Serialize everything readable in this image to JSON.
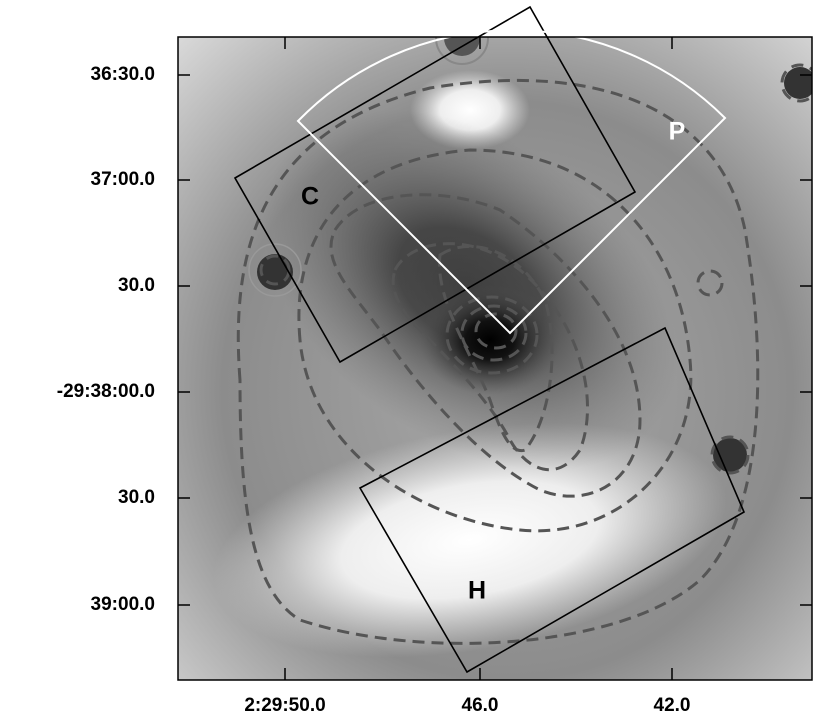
{
  "x_axis": {
    "ticks": [
      "2:29:50.0",
      "46.0",
      "42.0"
    ]
  },
  "y_axis": {
    "ticks": [
      "36:30.0",
      "37:00.0",
      "30.0",
      "-29:38:00.0",
      "30.0",
      "39:00.0"
    ]
  },
  "regions": [
    {
      "label": "C"
    },
    {
      "label": "P"
    },
    {
      "label": "H"
    }
  ]
}
